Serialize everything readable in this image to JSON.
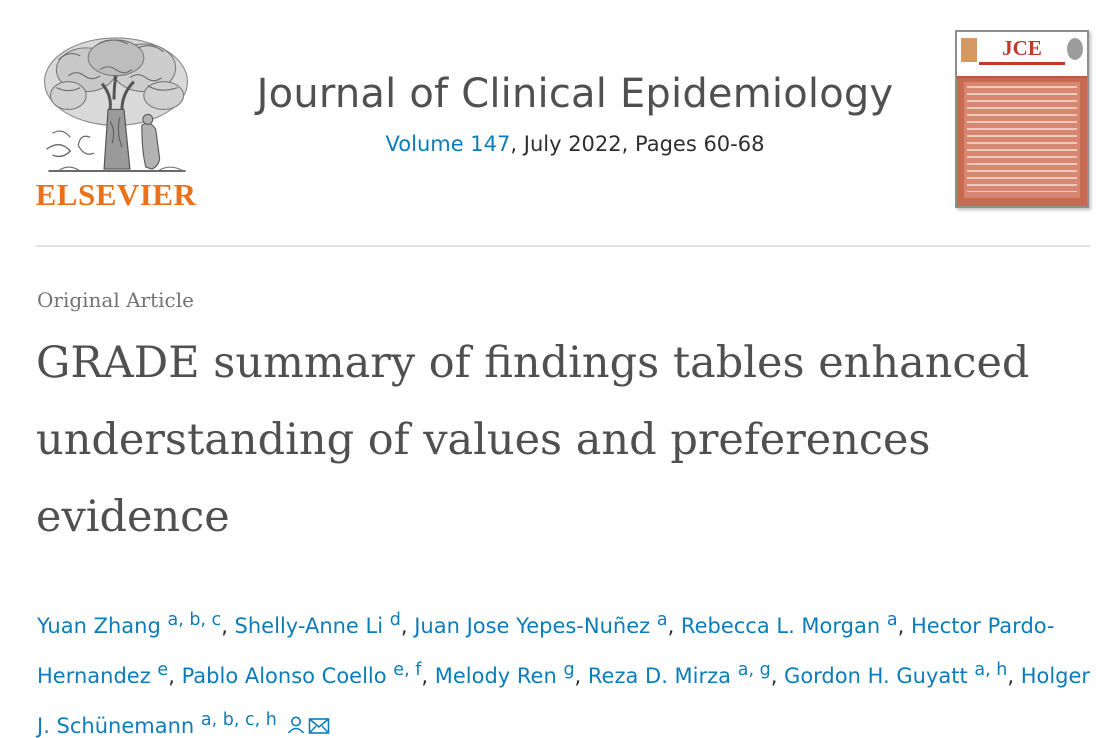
{
  "publisher": {
    "name": "ELSEVIER",
    "logo_icon": "tree-of-knowledge-icon",
    "brand_color": "#e9711c"
  },
  "journal": {
    "title": "Journal of Clinical Epidemiology",
    "volume_label": "Volume 147",
    "issue_rest": ", July 2022, Pages 60-68",
    "cover_acronym": "JCE",
    "cover_color": "#c86a52",
    "link_color": "#0c7dbb"
  },
  "article": {
    "type": "Original Article",
    "title": "GRADE summary of findings tables enhanced understanding of values and preferences evidence"
  },
  "authors": [
    {
      "name": "Yuan Zhang",
      "affil": "a, b, c",
      "sep": ", "
    },
    {
      "name": "Shelly-Anne Li",
      "affil": "d",
      "sep": ", "
    },
    {
      "name": "Juan Jose Yepes-Nuñez",
      "affil": "a",
      "sep": ", "
    },
    {
      "name": "Rebecca L. Morgan",
      "affil": "a",
      "sep": ", "
    },
    {
      "name": "Hector Pardo-Hernandez",
      "affil": "e",
      "sep": ", "
    },
    {
      "name": "Pablo Alonso Coello",
      "affil": "e, f",
      "sep": ", "
    },
    {
      "name": "Melody Ren",
      "affil": "g",
      "sep": ", "
    },
    {
      "name": "Reza D. Mirza",
      "affil": "a, g",
      "sep": ", "
    },
    {
      "name": "Gordon H. Guyatt",
      "affil": "a, h",
      "sep": ", "
    },
    {
      "name": "Holger J. Schünemann",
      "affil": "a, b, c, h",
      "sep": ""
    }
  ],
  "author_icons": {
    "corresponding": "person-icon",
    "email": "envelope-icon"
  }
}
